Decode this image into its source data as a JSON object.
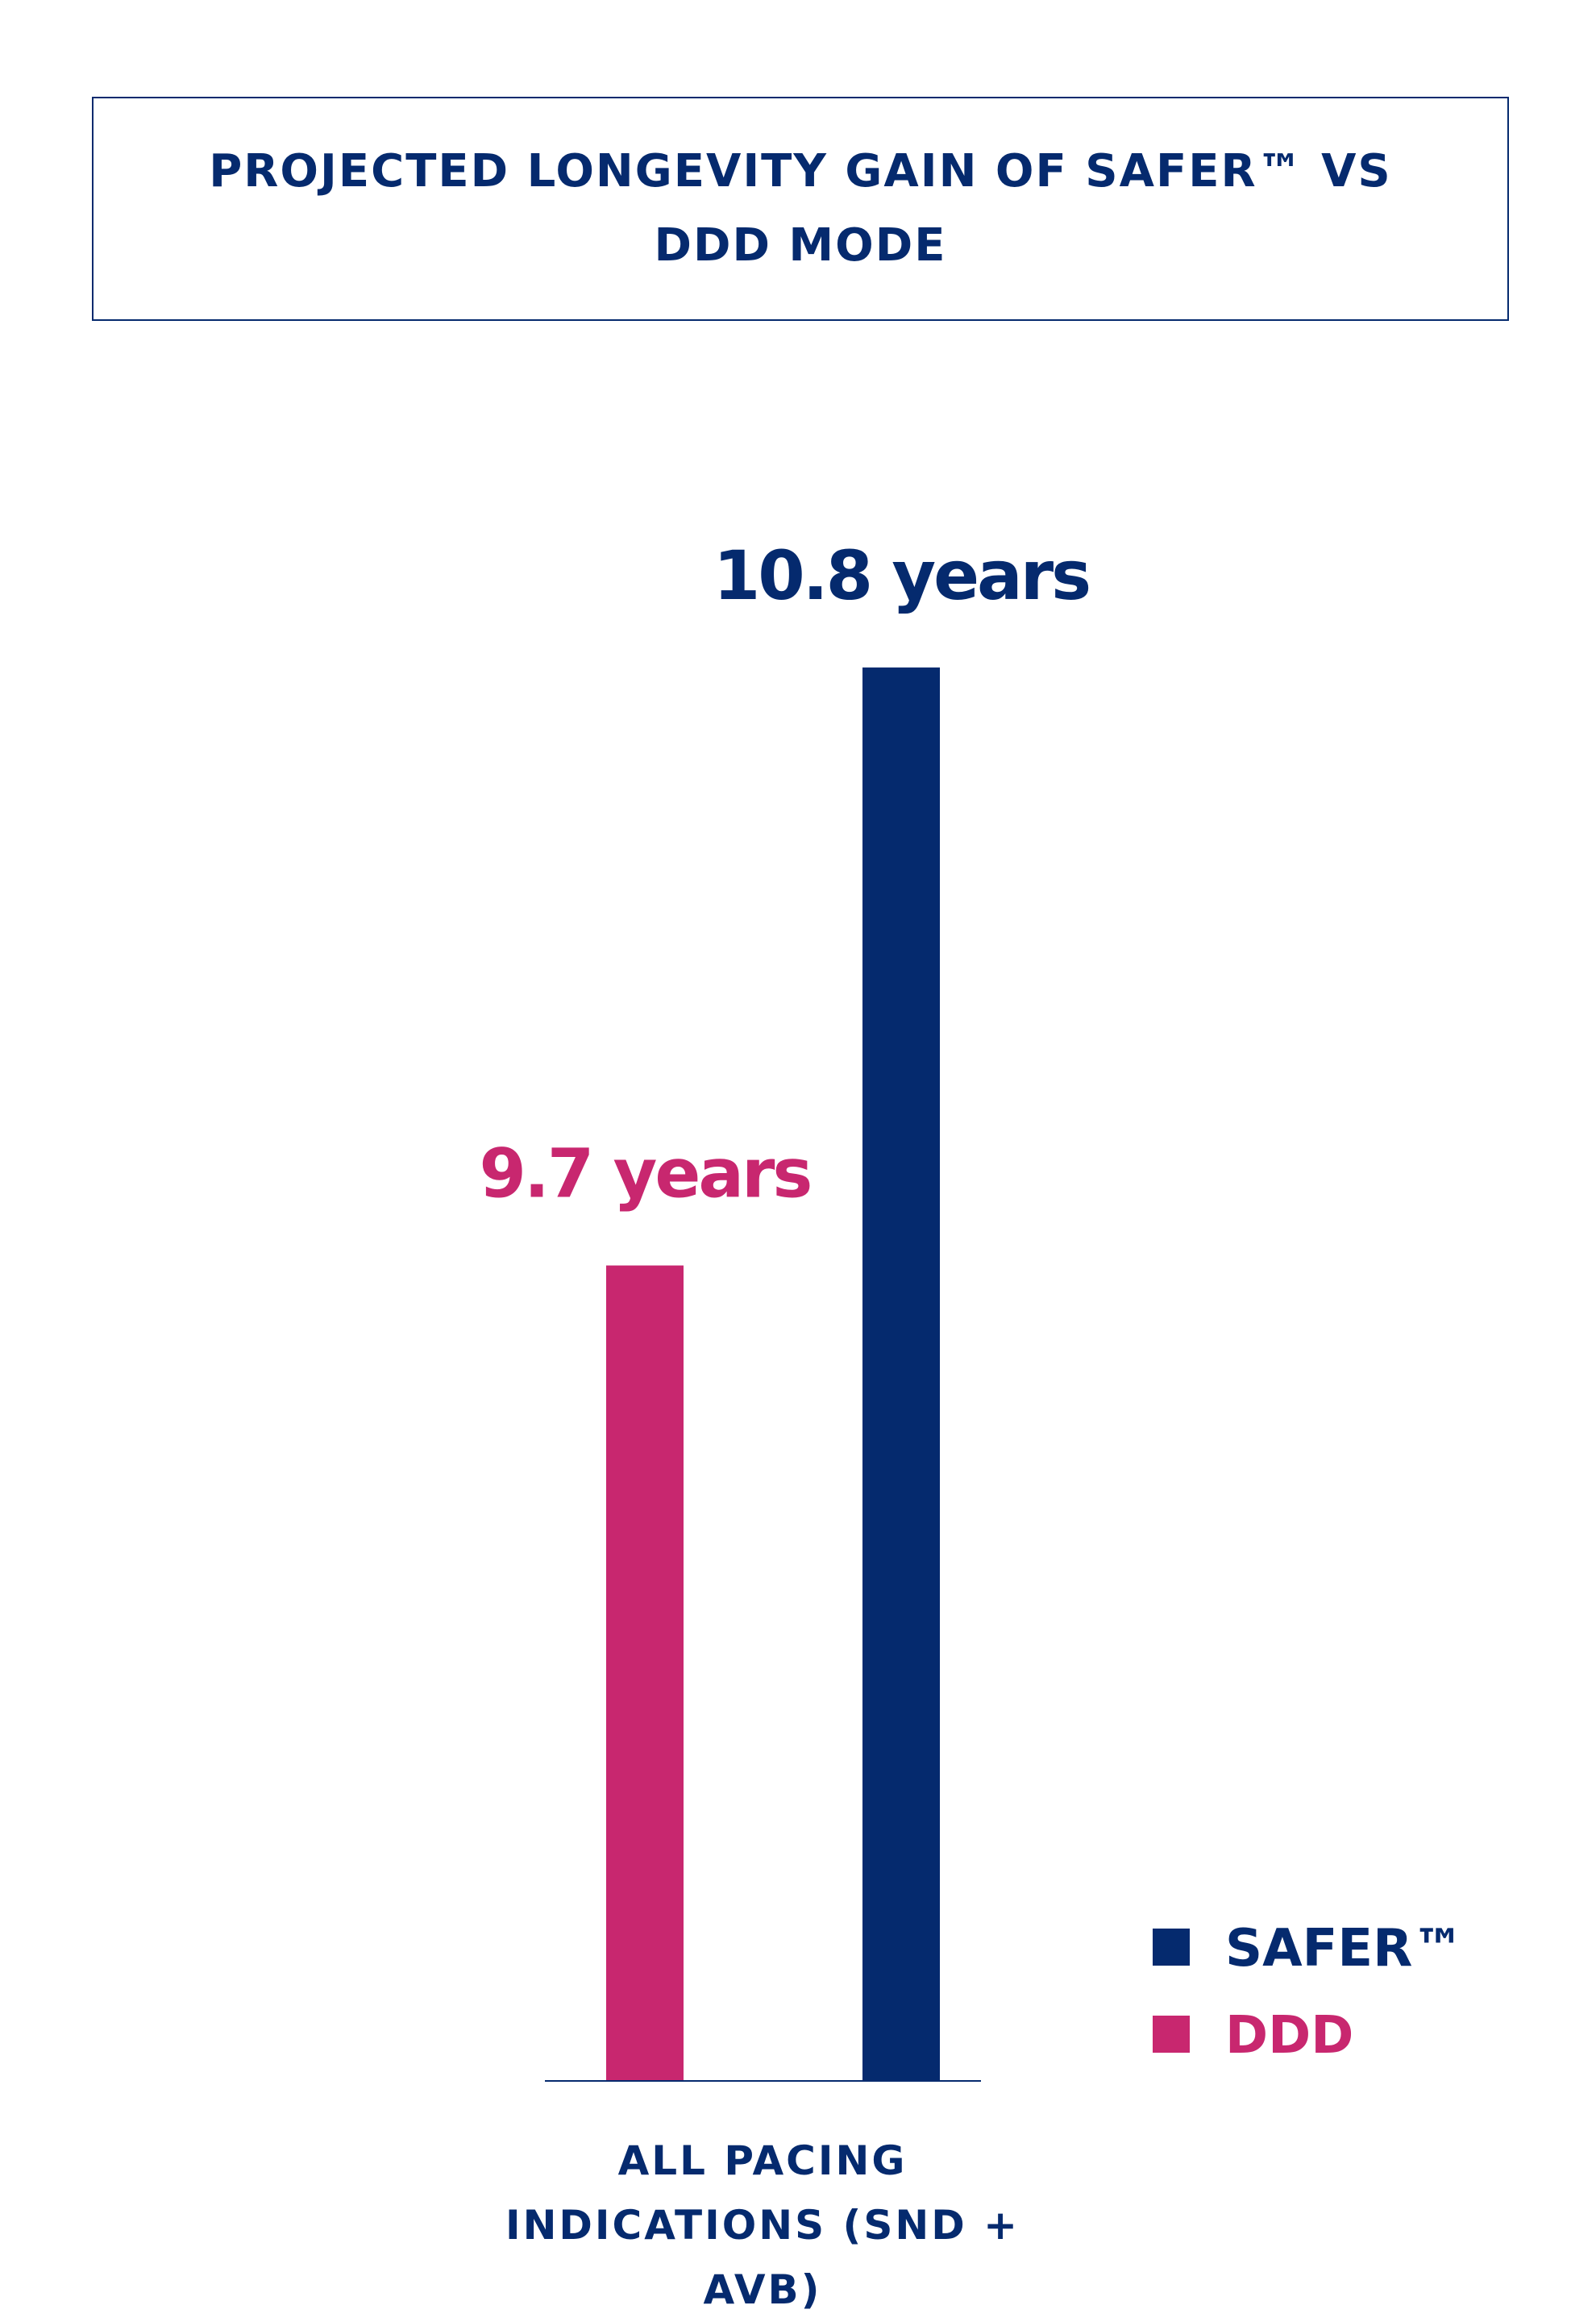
{
  "chart_data": {
    "type": "bar",
    "title": "PROJECTED LONGEVITY GAIN OF SAFER™ VS DDD MODE",
    "categories": [
      "ALL PACING INDICATIONS (SND + AVB)"
    ],
    "series": [
      {
        "name": "DDD",
        "color": "#c8276f",
        "values": [
          9.7
        ],
        "value_labels": [
          "9.7 years"
        ]
      },
      {
        "name": "SAFER™",
        "color": "#052a6e",
        "values": [
          10.8
        ],
        "value_labels": [
          "10.8 years"
        ]
      }
    ],
    "ylim": [
      8.2,
      11
    ]
  }
}
